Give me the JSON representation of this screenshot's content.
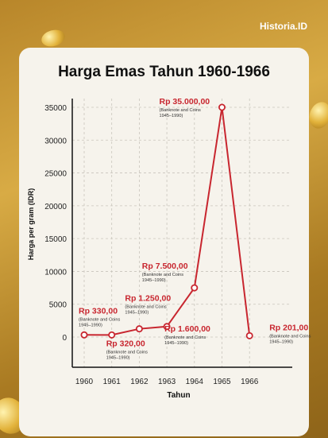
{
  "brand": "Historia.ID",
  "chart_data": {
    "type": "line",
    "title": "Harga Emas Tahun 1960-1966",
    "xlabel": "Tahun",
    "ylabel": "Harga per gram (IDR)",
    "x": [
      "1960",
      "1961",
      "1962",
      "1963",
      "1964",
      "1965",
      "1966"
    ],
    "values": [
      330,
      320,
      1250,
      1600,
      7500,
      35000,
      201
    ],
    "ylim": [
      0,
      35000
    ],
    "yticks": [
      "0",
      "5000",
      "10000",
      "15000",
      "20000",
      "25000",
      "30000",
      "35000"
    ],
    "line_color": "#c8262f",
    "grid": "dashed",
    "labels": [
      {
        "text": "Rp 330,00",
        "note": "(Banknote and Coins 1945–1990)"
      },
      {
        "text": "Rp 320,00",
        "note": "(Banknote and Coins 1945–1990)"
      },
      {
        "text": "Rp 1.250,00",
        "note": "(Banknote and Coins 1945–1990)"
      },
      {
        "text": "Rp 1.600,00",
        "note": "(Banknote and Coins 1945–1990)"
      },
      {
        "text": "Rp 7.500,00",
        "note": "(Banknote and Coins 1945–1990)"
      },
      {
        "text": "Rp 35.000,00",
        "note": "(Banknote and Coins 1945–1990)"
      },
      {
        "text": "Rp 201,00",
        "note": "(Banknote and Coins 1945–1990)"
      }
    ]
  }
}
